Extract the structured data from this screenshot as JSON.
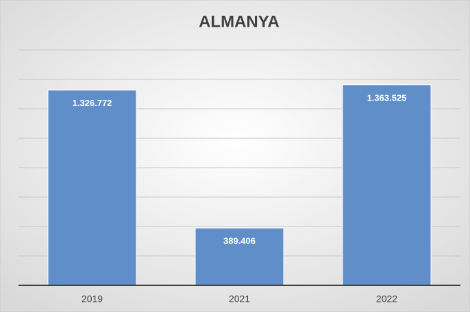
{
  "chart_data": {
    "type": "bar",
    "title": "ALMANYA",
    "categories": [
      "2019",
      "2021",
      "2022"
    ],
    "values": [
      1326772,
      389406,
      1363525
    ],
    "value_labels": [
      "1.326.772",
      "389.406",
      "1.363.525"
    ],
    "color": "#5f8ec8",
    "ylim": [
      0,
      1600000
    ],
    "yticks": [
      0,
      200000,
      400000,
      600000,
      800000,
      1000000,
      1200000,
      1400000,
      1600000
    ],
    "grid": true
  }
}
